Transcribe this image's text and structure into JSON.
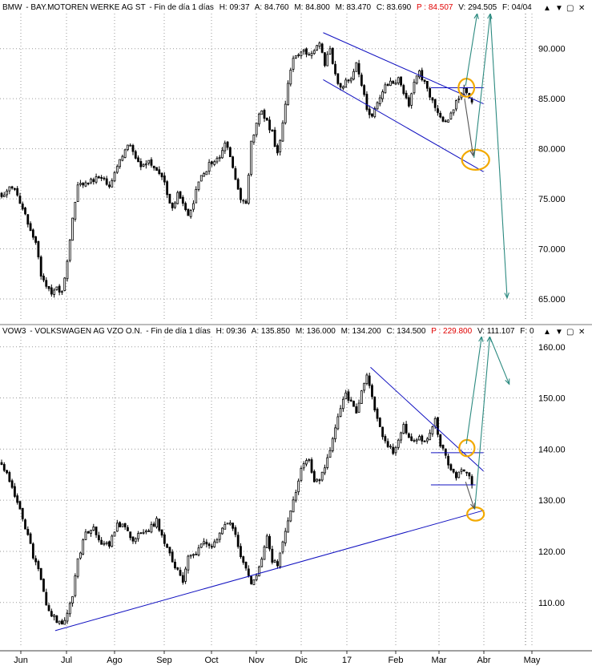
{
  "panel_controls": [
    "▲",
    "▼",
    "▢",
    "✕"
  ],
  "colors": {
    "candle": "#000000",
    "trendline": "#1010c0",
    "target_arrow": "#2c8a80",
    "highlight_ellipse": "#f2a900",
    "grid": "#9a9a9a",
    "signal_arrow": "#555555"
  },
  "x_axis": {
    "labels": [
      "Jun",
      "Jul",
      "Ago",
      "Sep",
      "Oct",
      "Nov",
      "Dic",
      "17",
      "Feb",
      "Mar",
      "Abr",
      "May"
    ]
  },
  "chart_data": [
    {
      "type": "candlestick",
      "series_name": "BAY.MOTOREN WERKE AG ST",
      "header": {
        "symbol": "BMW",
        "name": "BAY.MOTOREN WERKE AG ST",
        "period": "Fin de día 1 días",
        "time": "H: 09:37",
        "open": "A: 84.760",
        "high": "M: 84.800",
        "low": "M: 83.470",
        "close": "C: 83.690",
        "p": "P : 84.507",
        "v": "V: 294.505",
        "f": "F: 04/04"
      },
      "y_ticks": [
        "90.000",
        "85.000",
        "80.000",
        "75.000",
        "70.000",
        "65.000"
      ],
      "y_tick_values": [
        90,
        85,
        80,
        75,
        70,
        65
      ],
      "ylim": [
        63.0,
        93.5
      ],
      "price_path": [
        [
          0,
          75.5
        ],
        [
          5,
          76.2
        ],
        [
          10,
          72.5
        ],
        [
          13,
          70.5
        ],
        [
          15,
          67.5
        ],
        [
          17,
          66.0
        ],
        [
          19,
          65.5
        ],
        [
          21,
          66.2
        ],
        [
          23,
          65.5
        ],
        [
          25,
          69.0
        ],
        [
          27,
          73.0
        ],
        [
          29,
          76.5
        ],
        [
          33,
          76.8
        ],
        [
          37,
          77.2
        ],
        [
          41,
          76.5
        ],
        [
          44,
          78.3
        ],
        [
          46,
          79.0
        ],
        [
          48,
          80.6
        ],
        [
          51,
          79.2
        ],
        [
          53,
          78.0
        ],
        [
          56,
          78.8
        ],
        [
          59,
          78.1
        ],
        [
          62,
          76.5
        ],
        [
          64,
          74.8
        ],
        [
          65,
          74.0
        ],
        [
          67,
          75.6
        ],
        [
          69,
          74.4
        ],
        [
          71,
          73.3
        ],
        [
          73,
          74.8
        ],
        [
          75,
          76.6
        ],
        [
          77,
          77.5
        ],
        [
          79,
          78.4
        ],
        [
          81,
          78.8
        ],
        [
          83,
          79.4
        ],
        [
          85,
          80.5
        ],
        [
          87,
          79.3
        ],
        [
          89,
          77.2
        ],
        [
          91,
          75.0
        ],
        [
          93,
          74.8
        ],
        [
          95,
          80.5
        ],
        [
          97,
          82.7
        ],
        [
          99,
          83.8
        ],
        [
          101,
          82.8
        ],
        [
          103,
          81.5
        ],
        [
          105,
          79.5
        ],
        [
          107,
          82.5
        ],
        [
          109,
          86.5
        ],
        [
          111,
          88.8
        ],
        [
          113,
          89.3
        ],
        [
          115,
          89.8
        ],
        [
          117,
          89.6
        ],
        [
          119,
          89.9
        ],
        [
          121,
          90.6
        ],
        [
          123,
          88.6
        ],
        [
          125,
          89.8
        ],
        [
          127,
          87.3
        ],
        [
          129,
          86.2
        ],
        [
          131,
          86.6
        ],
        [
          133,
          87.2
        ],
        [
          135,
          88.8
        ],
        [
          137,
          86.3
        ],
        [
          139,
          84.0
        ],
        [
          141,
          83.1
        ],
        [
          143,
          84.6
        ],
        [
          145,
          85.6
        ],
        [
          147,
          86.6
        ],
        [
          149,
          86.4
        ],
        [
          151,
          87.1
        ],
        [
          153,
          85.4
        ],
        [
          155,
          84.5
        ],
        [
          157,
          86.8
        ],
        [
          159,
          87.6
        ],
        [
          161,
          86.7
        ],
        [
          163,
          85.4
        ],
        [
          165,
          84.1
        ],
        [
          167,
          83.1
        ],
        [
          169,
          82.6
        ],
        [
          171,
          83.7
        ],
        [
          173,
          84.6
        ],
        [
          175,
          85.6
        ],
        [
          177,
          85.9
        ],
        [
          179,
          84.5
        ]
      ],
      "trendlines": [
        {
          "from": [
            123,
            91.6
          ],
          "to": [
            184,
            84.5
          ]
        },
        {
          "from": [
            123,
            86.9
          ],
          "to": [
            184,
            77.7
          ]
        },
        {
          "from": [
            164,
            86.1
          ],
          "to": [
            184,
            86.1
          ]
        }
      ],
      "projection_arrows": [
        {
          "from": [
            177.2,
            86.3
          ],
          "to": [
            181.6,
            93.5
          ]
        },
        {
          "from": [
            180.4,
            79.1
          ],
          "to": [
            186.6,
            93.5
          ]
        }
      ],
      "signal_arrows": [
        {
          "from": [
            176.8,
            85.0
          ],
          "to": [
            180.1,
            79.3
          ]
        }
      ],
      "highlight_ellipses": [
        {
          "cx": 177.5,
          "cy": 86.1,
          "rx": 3.0,
          "ry": 0.9
        },
        {
          "cx": 181.0,
          "cy": 78.9,
          "rx": 5.2,
          "ry": 1.0
        }
      ],
      "overflow_arrows": [
        {
          "from": [
            186.6,
            93.5
          ],
          "to": [
            193.0,
            65.1
          ]
        }
      ]
    },
    {
      "type": "candlestick",
      "series_name": "VOLKSWAGEN AG VZO O.N.",
      "header": {
        "symbol": "VOW3",
        "name": "VOLKSWAGEN AG VZO O.N.",
        "period": "Fin de día 1 días",
        "time": "H: 09:36",
        "open": "A: 135.850",
        "high": "M: 136.000",
        "low": "M: 134.200",
        "close": "C: 134.500",
        "p": "P : 229.800",
        "v": "V: 111.107",
        "f": "F: 0"
      },
      "y_ticks": [
        "160.00",
        "150.00",
        "140.00",
        "130.00",
        "120.00",
        "110.00"
      ],
      "y_tick_values": [
        160,
        150,
        140,
        130,
        120,
        110
      ],
      "ylim": [
        101.5,
        162.0
      ],
      "price_path": [
        [
          0,
          137.5
        ],
        [
          4,
          132.5
        ],
        [
          7,
          128.0
        ],
        [
          10,
          123.0
        ],
        [
          12,
          119.0
        ],
        [
          15,
          115.0
        ],
        [
          17,
          110.0
        ],
        [
          19,
          107.5
        ],
        [
          21,
          106.5
        ],
        [
          23,
          105.5
        ],
        [
          25,
          108.0
        ],
        [
          27,
          111.5
        ],
        [
          29,
          118.5
        ],
        [
          32,
          123.5
        ],
        [
          35,
          124.5
        ],
        [
          38,
          121.5
        ],
        [
          41,
          121.0
        ],
        [
          44,
          125.5
        ],
        [
          47,
          124.5
        ],
        [
          50,
          122.5
        ],
        [
          53,
          123.5
        ],
        [
          56,
          124.5
        ],
        [
          59,
          126.0
        ],
        [
          62,
          121.5
        ],
        [
          65,
          118.5
        ],
        [
          67,
          116.0
        ],
        [
          69,
          114.5
        ],
        [
          71,
          119.0
        ],
        [
          74,
          120.0
        ],
        [
          77,
          122.0
        ],
        [
          80,
          120.5
        ],
        [
          83,
          124.0
        ],
        [
          86,
          126.0
        ],
        [
          89,
          123.5
        ],
        [
          91,
          119.5
        ],
        [
          93,
          116.5
        ],
        [
          95,
          114.0
        ],
        [
          97,
          115.5
        ],
        [
          99,
          118.5
        ],
        [
          101,
          122.5
        ],
        [
          103,
          118.0
        ],
        [
          105,
          117.5
        ],
        [
          107,
          121.5
        ],
        [
          109,
          126.0
        ],
        [
          111,
          130.0
        ],
        [
          113,
          134.0
        ],
        [
          115,
          137.5
        ],
        [
          117,
          137.5
        ],
        [
          119,
          134.0
        ],
        [
          121,
          133.5
        ],
        [
          123,
          136.5
        ],
        [
          125,
          139.5
        ],
        [
          127,
          144.5
        ],
        [
          129,
          148.0
        ],
        [
          131,
          150.5
        ],
        [
          133,
          149.0
        ],
        [
          135,
          147.5
        ],
        [
          137,
          151.5
        ],
        [
          139,
          154.5
        ],
        [
          141,
          150.0
        ],
        [
          143,
          145.5
        ],
        [
          145,
          143.0
        ],
        [
          147,
          141.0
        ],
        [
          149,
          139.5
        ],
        [
          151,
          141.5
        ],
        [
          153,
          144.5
        ],
        [
          155,
          142.5
        ],
        [
          157,
          141.5
        ],
        [
          159,
          142.5
        ],
        [
          161,
          141.0
        ],
        [
          163,
          143.5
        ],
        [
          165,
          145.5
        ],
        [
          167,
          141.0
        ],
        [
          169,
          138.5
        ],
        [
          171,
          135.5
        ],
        [
          173,
          134.5
        ],
        [
          175,
          136.5
        ],
        [
          177,
          135.5
        ],
        [
          179,
          133.5
        ]
      ],
      "trendlines": [
        {
          "from": [
            141,
            156.0
          ],
          "to": [
            184,
            135.7
          ]
        },
        {
          "from": [
            21,
            104.5
          ],
          "to": [
            184,
            128.0
          ]
        },
        {
          "from": [
            164,
            139.3
          ],
          "to": [
            184,
            139.3
          ]
        },
        {
          "from": [
            164,
            133.0
          ],
          "to": [
            181,
            133.0
          ]
        }
      ],
      "projection_arrows": [
        {
          "from": [
            177.5,
            141.0
          ],
          "to": [
            183.3,
            162.0
          ]
        },
        {
          "from": [
            180.7,
            128.2
          ],
          "to": [
            186.4,
            162.0
          ]
        },
        {
          "from": [
            186.4,
            162.0
          ],
          "to": [
            193.8,
            152.7
          ]
        }
      ],
      "signal_arrows": [
        {
          "from": [
            177.2,
            133.6
          ],
          "to": [
            180.5,
            128.4
          ]
        }
      ],
      "highlight_ellipses": [
        {
          "cx": 177.7,
          "cy": 140.2,
          "rx": 2.9,
          "ry": 1.6
        },
        {
          "cx": 181.0,
          "cy": 127.3,
          "rx": 3.2,
          "ry": 1.3
        }
      ]
    }
  ]
}
